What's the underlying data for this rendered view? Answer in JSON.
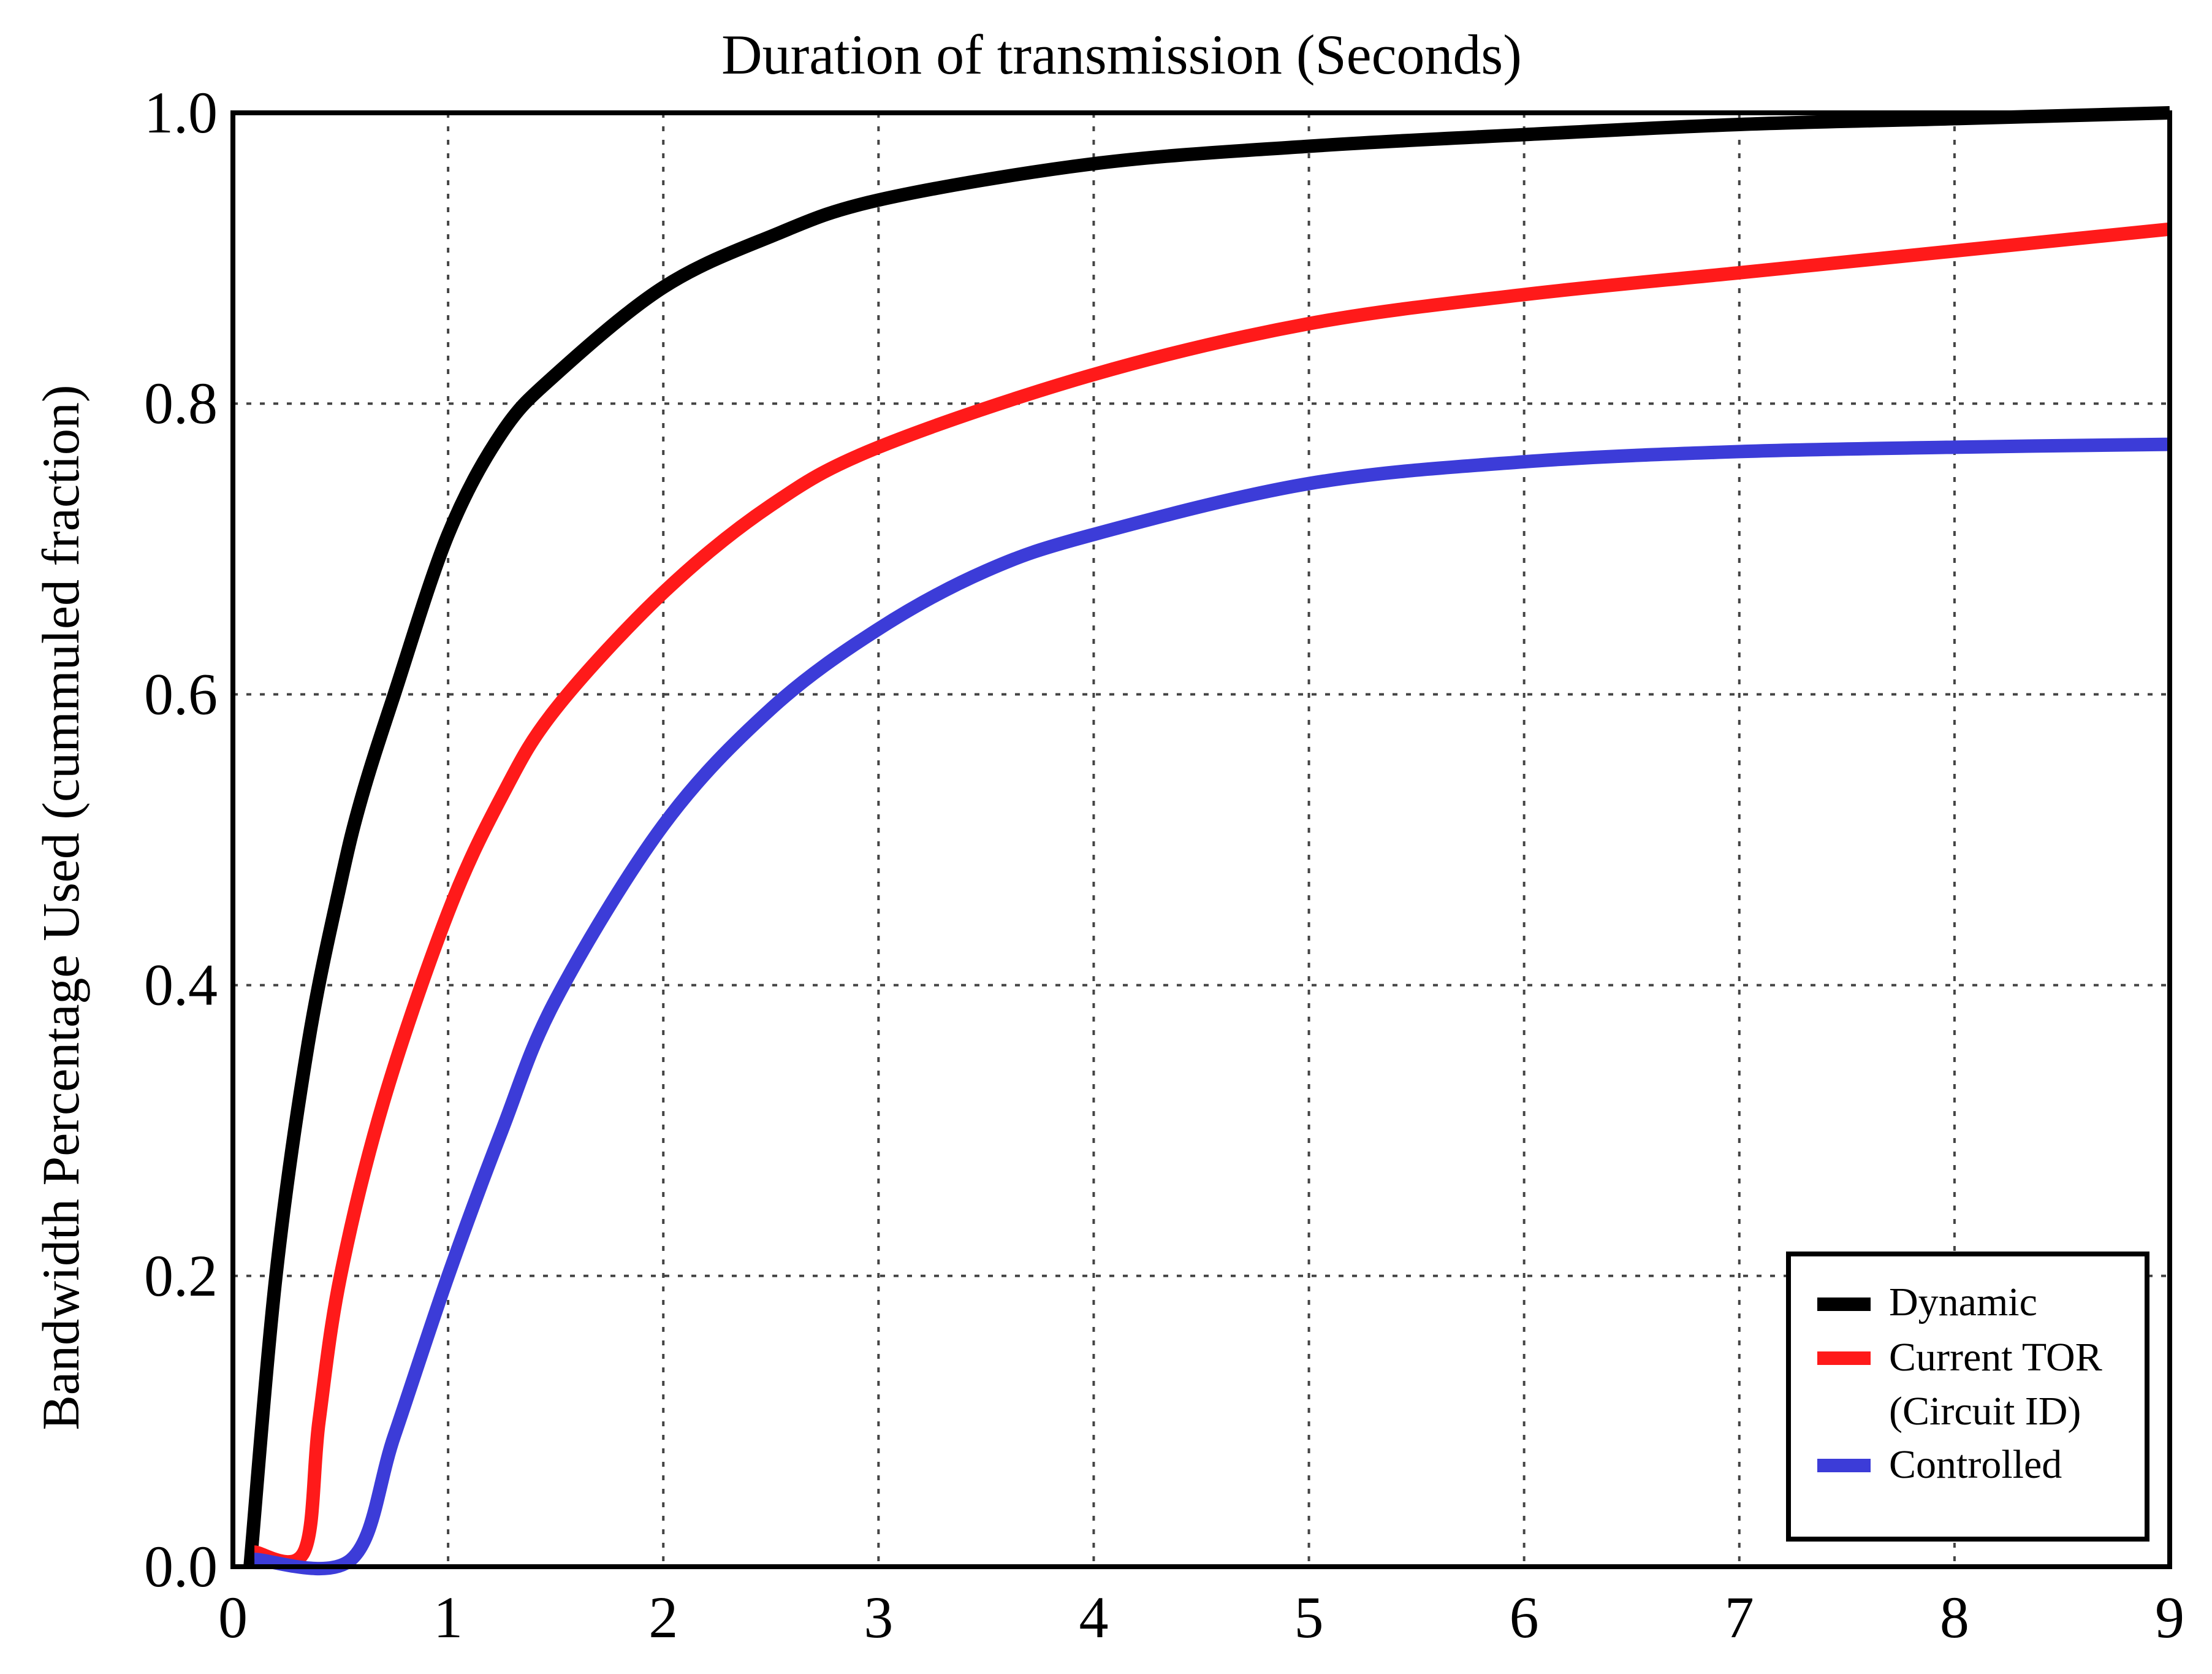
{
  "chart_data": {
    "type": "line",
    "title": "Duration of transmission (Seconds)",
    "xlabel": "",
    "ylabel": "Bandwidth Percentage Used (cummuled fraction)",
    "xlim": [
      0,
      9
    ],
    "ylim": [
      0.0,
      1.0
    ],
    "xticks": [
      "0",
      "1",
      "2",
      "3",
      "4",
      "5",
      "6",
      "7",
      "8",
      "9"
    ],
    "yticks": [
      "0.0",
      "0.2",
      "0.4",
      "0.6",
      "0.8",
      "1.0"
    ],
    "grid": true,
    "legend_position": "lower right",
    "series": [
      {
        "name": "Dynamic",
        "color": "#000000",
        "x": [
          0.08,
          0.2,
          0.35,
          0.5,
          0.6,
          0.75,
          1.0,
          1.25,
          1.5,
          2.0,
          2.5,
          3.0,
          4.0,
          5.0,
          6.0,
          7.0,
          8.0,
          9.0
        ],
        "y": [
          0.0,
          0.2,
          0.36,
          0.47,
          0.53,
          0.6,
          0.71,
          0.78,
          0.82,
          0.88,
          0.915,
          0.94,
          0.965,
          0.977,
          0.985,
          0.992,
          0.996,
          1.0
        ]
      },
      {
        "name": "Current TOR (Circuit ID)",
        "color": "#ff1a1a",
        "x": [
          0.1,
          0.33,
          0.4,
          0.5,
          0.7,
          1.0,
          1.25,
          1.5,
          2.0,
          2.5,
          3.0,
          4.0,
          5.0,
          6.0,
          7.0,
          8.0,
          9.0
        ],
        "y": [
          0.01,
          0.01,
          0.1,
          0.2,
          0.32,
          0.45,
          0.53,
          0.59,
          0.67,
          0.73,
          0.77,
          0.82,
          0.855,
          0.875,
          0.89,
          0.905,
          0.92
        ]
      },
      {
        "name": "Controlled",
        "color": "#3c3cd8",
        "x": [
          0.1,
          0.55,
          0.75,
          1.0,
          1.25,
          1.5,
          2.0,
          2.5,
          3.0,
          3.5,
          4.0,
          5.0,
          6.0,
          7.0,
          8.0,
          9.0
        ],
        "y": [
          0.005,
          0.005,
          0.09,
          0.2,
          0.3,
          0.39,
          0.51,
          0.59,
          0.645,
          0.685,
          0.71,
          0.745,
          0.76,
          0.767,
          0.77,
          0.772
        ]
      }
    ],
    "legend": {
      "items": [
        "Dynamic",
        "Current TOR",
        "(Circuit ID)",
        "Controlled"
      ]
    }
  }
}
